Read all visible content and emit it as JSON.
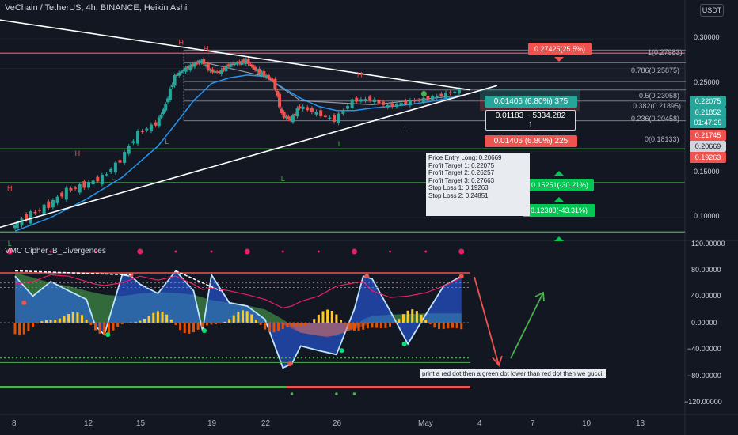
{
  "header": {
    "title": "VeChain / TetherUS, 4h, BINANCE, Heikin Ashi",
    "currency_badge": "USDT",
    "indicator_title": "VMC Cipher_B_Divergences"
  },
  "price_axis": {
    "labels": [
      "0.30000",
      "0.25000",
      "0.15000",
      "0.10000"
    ]
  },
  "osc_axis": {
    "labels": [
      "120.00000",
      "80.00000",
      "40.00000",
      "0.00000",
      "−40.00000",
      "−80.00000",
      "−120.00000"
    ]
  },
  "time_axis": {
    "labels": [
      "8",
      "12",
      "15",
      "19",
      "22",
      "26",
      "May",
      "4",
      "7",
      "10",
      "13"
    ]
  },
  "price_tags": [
    {
      "text": "0.22075",
      "color": "#26a69a"
    },
    {
      "text": "0.21852",
      "color": "#26a69a"
    },
    {
      "text": "01:47:29",
      "color": "#26a69a"
    },
    {
      "text": "0.21745",
      "color": "#ef5350"
    },
    {
      "text": "0.20669",
      "color": "#d1d4dc"
    },
    {
      "text": "0.19263",
      "color": "#ef5350"
    }
  ],
  "fib_levels": [
    {
      "label": "1(0.27983)",
      "price": 0.27983
    },
    {
      "label": "0.786(0.25875)",
      "price": 0.25875
    },
    {
      "label": "0.5(0.23058)",
      "price": 0.23058
    },
    {
      "label": "0.382(0.21895)",
      "price": 0.21895
    },
    {
      "label": "0.236(0.20458)",
      "price": 0.20458
    },
    {
      "label": "0(0.18133)",
      "price": 0.18133
    }
  ],
  "target_label": "0.27425(25.5%)",
  "position_tool": {
    "profit": "0.01406 (6.80%) 375",
    "risk": "0.01406 (6.80%) 225",
    "center_line1": "0.01183 ~ 5334.282",
    "center_line2": "1"
  },
  "downside_labels": [
    "0.15251(-30.21%)",
    "0.12388(-43.31%)"
  ],
  "info_box": {
    "lines": [
      "Price Entry Long: 0.20669",
      "",
      "Profit Target 1: 0.22075",
      "Profit Target 2: 0.26257",
      "Profit Target 3: 0.27663",
      "",
      "Stop Loss 1: 0.19263",
      "Stop Loss 2: 0.24851"
    ]
  },
  "annotation": "print a red dot then a green dot lower than red dot then we gucci.",
  "chart_markers": {
    "high_letter": "H",
    "low_letter": "L",
    "highs": [
      {
        "day": 7.7,
        "price": 0.118
      },
      {
        "day": 11.5,
        "price": 0.146
      },
      {
        "day": 17.3,
        "price": 0.289
      },
      {
        "day": 18.7,
        "price": 0.278
      },
      {
        "day": 27.3,
        "price": 0.237
      }
    ],
    "lows": [
      {
        "day": 7.7,
        "price": 0.084
      },
      {
        "day": 13.5,
        "price": 0.126
      },
      {
        "day": 16.5,
        "price": 0.157
      },
      {
        "day": 23.0,
        "price": 0.125
      },
      {
        "day": 26.2,
        "price": 0.155
      },
      {
        "day": 29.9,
        "price": 0.17
      }
    ]
  },
  "chart_data": [
    {
      "type": "candlestick",
      "title": "VeChain / TetherUS, 4h, BINANCE, Heikin Ashi",
      "y_unit": "USDT",
      "x_unit": "day of month (Apr → May)",
      "ylim": [
        0.08,
        0.315
      ],
      "series": [
        {
          "name": "close",
          "x": [
            8,
            9,
            10,
            11,
            12,
            13,
            14,
            15,
            16,
            16.5,
            17,
            17.5,
            18,
            18.5,
            19,
            19.5,
            20,
            20.5,
            21,
            21.5,
            22,
            22.5,
            23,
            23.5,
            24,
            25,
            26,
            27,
            28,
            29,
            30,
            31,
            32,
            33
          ],
          "values": [
            0.095,
            0.102,
            0.108,
            0.118,
            0.122,
            0.128,
            0.142,
            0.168,
            0.178,
            0.2,
            0.238,
            0.248,
            0.255,
            0.262,
            0.246,
            0.244,
            0.255,
            0.258,
            0.262,
            0.248,
            0.24,
            0.232,
            0.188,
            0.182,
            0.198,
            0.19,
            0.182,
            0.205,
            0.207,
            0.198,
            0.203,
            0.207,
            0.212,
            0.219
          ]
        },
        {
          "name": "ma",
          "x": [
            8,
            10,
            12,
            14,
            16,
            17,
            18,
            19,
            20,
            21,
            22,
            23,
            24,
            25,
            26,
            27,
            28,
            29,
            30,
            31,
            32,
            33
          ],
          "values": [
            0.092,
            0.1,
            0.112,
            0.128,
            0.155,
            0.178,
            0.205,
            0.228,
            0.236,
            0.24,
            0.238,
            0.222,
            0.208,
            0.198,
            0.193,
            0.193,
            0.196,
            0.198,
            0.2,
            0.203,
            0.207,
            0.211
          ]
        }
      ],
      "horizontal_levels": [
        0.27983,
        0.25875,
        0.23058,
        0.21895,
        0.20458,
        0.18133,
        0.1525,
        0.1239,
        0.0915
      ],
      "trendlines": [
        {
          "name": "descending",
          "from": [
            5,
            0.349
          ],
          "to": [
            33.5,
            0.219
          ]
        },
        {
          "name": "ascending",
          "from": [
            5,
            0.088
          ],
          "to": [
            35,
            0.225
          ]
        }
      ]
    },
    {
      "type": "area",
      "title": "VMC Cipher_B_Divergences",
      "ylim": [
        -125,
        125
      ],
      "x": [
        8,
        9,
        10,
        11,
        12,
        12.5,
        13,
        14,
        14.5,
        15,
        16,
        17,
        18,
        18.5,
        19,
        20,
        21,
        22,
        23,
        23.5,
        24,
        25,
        26,
        27,
        27.5,
        28,
        29,
        30,
        31,
        32,
        33
      ],
      "series": [
        {
          "name": "wave",
          "values": [
            70,
            40,
            62,
            48,
            35,
            -5,
            -18,
            72,
            70,
            58,
            44,
            78,
            48,
            -12,
            72,
            30,
            25,
            5,
            -68,
            -62,
            -35,
            -42,
            -48,
            20,
            70,
            66,
            18,
            -32,
            12,
            55,
            70
          ]
        },
        {
          "name": "money_flow",
          "values": [
            75,
            68,
            60,
            55,
            48,
            45,
            42,
            40,
            42,
            44,
            46,
            45,
            42,
            38,
            34,
            30,
            26,
            20,
            5,
            -5,
            -15,
            -20,
            -20,
            -8,
            5,
            10,
            12,
            13,
            14,
            14,
            14
          ]
        },
        {
          "name": "rsi_line",
          "values": [
            58,
            62,
            72,
            70,
            62,
            58,
            56,
            60,
            65,
            70,
            64,
            70,
            58,
            50,
            52,
            48,
            42,
            35,
            22,
            25,
            32,
            40,
            55,
            60,
            62,
            48,
            38,
            40,
            45,
            55,
            68
          ]
        }
      ],
      "levels": [
        75,
        60,
        53,
        0,
        -53,
        -60
      ]
    }
  ]
}
